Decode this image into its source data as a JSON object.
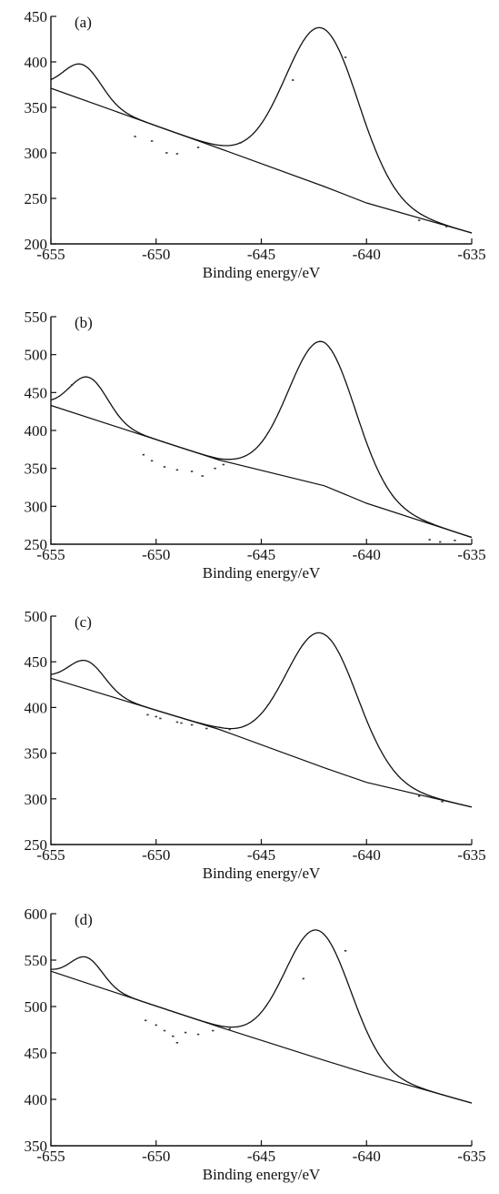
{
  "chart_data": [
    {
      "type": "line",
      "panel_label": "(a)",
      "xlabel": "Binding energy/eV",
      "ylabel": "",
      "xlim": [
        -655,
        -635
      ],
      "ylim": [
        200,
        450
      ],
      "xticks": [
        -655,
        -650,
        -645,
        -640,
        -635
      ],
      "xtick_labels": [
        "-655",
        "-650",
        "-645",
        "-640",
        "-635"
      ],
      "yticks": [
        200,
        250,
        300,
        350,
        400,
        450
      ],
      "ytick_labels": [
        "200",
        "250",
        "300",
        "350",
        "400",
        "450"
      ],
      "peaks": [
        {
          "center": -653.5,
          "top": 397,
          "width": 0.9
        },
        {
          "center": -642.1,
          "top": 437,
          "width": 1.75
        }
      ],
      "baseline": [
        [
          -655,
          371
        ],
        [
          -647,
          305
        ],
        [
          -642,
          263
        ],
        [
          -640,
          245
        ],
        [
          -635,
          212
        ]
      ],
      "scatter": [
        [
          -650.2,
          313
        ],
        [
          -649.5,
          300
        ],
        [
          -649.0,
          299
        ],
        [
          -651.0,
          318
        ],
        [
          -648.0,
          306
        ],
        [
          -646.0,
          311
        ],
        [
          -643.5,
          380
        ],
        [
          -641.0,
          405
        ],
        [
          -637.5,
          226
        ],
        [
          -636.2,
          219
        ]
      ]
    },
    {
      "type": "line",
      "panel_label": "(b)",
      "xlabel": "Binding energy/eV",
      "ylabel": "",
      "xlim": [
        -655,
        -635
      ],
      "ylim": [
        250,
        550
      ],
      "xticks": [
        -655,
        -650,
        -645,
        -640,
        -635
      ],
      "xtick_labels": [
        "-655",
        "-650",
        "-645",
        "-640",
        "-635"
      ],
      "yticks": [
        250,
        300,
        350,
        400,
        450,
        500,
        550
      ],
      "ytick_labels": [
        "250",
        "300",
        "350",
        "400",
        "450",
        "500",
        "550"
      ],
      "peaks": [
        {
          "center": -653.2,
          "top": 470,
          "width": 0.9
        },
        {
          "center": -642.1,
          "top": 517,
          "width": 1.6
        }
      ],
      "baseline": [
        [
          -655,
          433
        ],
        [
          -647,
          361
        ],
        [
          -642,
          327
        ],
        [
          -640,
          304
        ],
        [
          -635,
          259
        ]
      ],
      "scatter": [
        [
          -650.6,
          368
        ],
        [
          -650.2,
          360
        ],
        [
          -649.6,
          352
        ],
        [
          -649.0,
          348
        ],
        [
          -648.3,
          346
        ],
        [
          -647.8,
          340
        ],
        [
          -647.2,
          350
        ],
        [
          -646.8,
          355
        ],
        [
          -637.0,
          256
        ],
        [
          -636.5,
          253
        ],
        [
          -635.8,
          255
        ],
        [
          -654.0,
          460
        ]
      ]
    },
    {
      "type": "line",
      "panel_label": "(c)",
      "xlabel": "Binding energy/eV",
      "ylabel": "",
      "xlim": [
        -655,
        -635
      ],
      "ylim": [
        250,
        500
      ],
      "xticks": [
        -655,
        -650,
        -645,
        -640,
        -635
      ],
      "xtick_labels": [
        "-655",
        "-650",
        "-645",
        "-640",
        "-635"
      ],
      "yticks": [
        250,
        300,
        350,
        400,
        450,
        500
      ],
      "ytick_labels": [
        "250",
        "300",
        "350",
        "400",
        "450",
        "500"
      ],
      "peaks": [
        {
          "center": -653.3,
          "top": 451,
          "width": 0.85
        },
        {
          "center": -642.1,
          "top": 481,
          "width": 1.7
        }
      ],
      "baseline": [
        [
          -655,
          432
        ],
        [
          -647,
          376
        ],
        [
          -642,
          334
        ],
        [
          -640,
          318
        ],
        [
          -635,
          291
        ]
      ],
      "scatter": [
        [
          -650.4,
          392
        ],
        [
          -649.8,
          388
        ],
        [
          -649.0,
          384
        ],
        [
          -648.3,
          381
        ],
        [
          -647.6,
          377
        ],
        [
          -650.0,
          390
        ],
        [
          -648.8,
          383
        ],
        [
          -646.5,
          376
        ],
        [
          -637.5,
          303
        ],
        [
          -636.4,
          297
        ]
      ]
    },
    {
      "type": "line",
      "panel_label": "(d)",
      "xlabel": "Binding energy/eV",
      "ylabel": "",
      "xlim": [
        -655,
        -635
      ],
      "ylim": [
        350,
        600
      ],
      "xticks": [
        -655,
        -650,
        -645,
        -640,
        -635
      ],
      "xtick_labels": [
        "-655",
        "-650",
        "-645",
        "-640",
        "-635"
      ],
      "yticks": [
        350,
        400,
        450,
        500,
        550,
        600
      ],
      "ytick_labels": [
        "350",
        "400",
        "450",
        "500",
        "550",
        "600"
      ],
      "peaks": [
        {
          "center": -653.3,
          "top": 553,
          "width": 0.75
        },
        {
          "center": -642.3,
          "top": 582,
          "width": 1.55
        }
      ],
      "baseline": [
        [
          -655,
          538
        ],
        [
          -647,
          478
        ],
        [
          -642,
          442
        ],
        [
          -640,
          428
        ],
        [
          -635,
          396
        ]
      ],
      "scatter": [
        [
          -650.5,
          485
        ],
        [
          -650.0,
          480
        ],
        [
          -649.6,
          474
        ],
        [
          -649.2,
          468
        ],
        [
          -649.0,
          461
        ],
        [
          -648.6,
          472
        ],
        [
          -648.0,
          470
        ],
        [
          -647.3,
          474
        ],
        [
          -646.5,
          476
        ],
        [
          -643.0,
          530
        ],
        [
          -641.0,
          560
        ]
      ]
    }
  ]
}
